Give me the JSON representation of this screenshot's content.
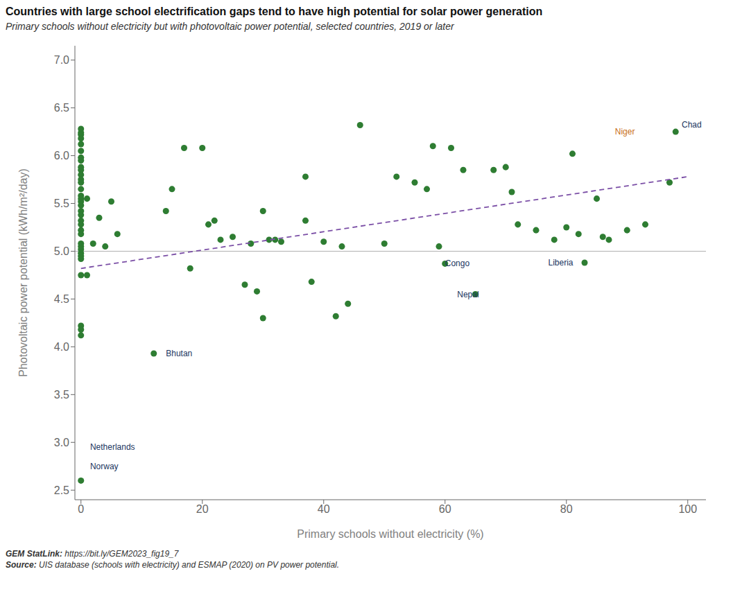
{
  "chart_data": {
    "type": "scatter",
    "title": "Countries with large school electrification gaps tend to have high potential for solar power generation",
    "subtitle": "Primary schools without electricity but with photovoltaic power potential, selected countries, 2019 or later",
    "x_label": "Primary schools without electricity (%)",
    "y_label": "Photovoltaic power potential (kWh/m²/day)",
    "xlim": [
      -1,
      103
    ],
    "ylim": [
      2.4,
      7.15
    ],
    "xticks": [
      0,
      20,
      40,
      60,
      80,
      100
    ],
    "yticks": [
      2.5,
      {
        "value": 3,
        "label": "3.0"
      },
      3.5,
      {
        "value": 4,
        "label": "4.0"
      },
      4.5,
      {
        "value": 5,
        "label": "5.0"
      },
      5.5,
      {
        "value": 6,
        "label": "6.0"
      },
      6.5,
      {
        "value": 7,
        "label": "7.0"
      }
    ],
    "grid": false,
    "color": "#2e7d32",
    "marker": "circle",
    "x": [
      0,
      0,
      0,
      0,
      0,
      0,
      0,
      0,
      0,
      0,
      0,
      0,
      0,
      0,
      0,
      0,
      0,
      0,
      0,
      0,
      0,
      0,
      0,
      0,
      0,
      0,
      0,
      0,
      0,
      0,
      0,
      0,
      0,
      0,
      0,
      1,
      1,
      2,
      3,
      4,
      5,
      6,
      12,
      14,
      15,
      17,
      18,
      20,
      21,
      22,
      23,
      25,
      27,
      28,
      29,
      30,
      30,
      31,
      32,
      33,
      37,
      37,
      38,
      40,
      42,
      43,
      44,
      46,
      50,
      52,
      55,
      57,
      58,
      59,
      60,
      61,
      63,
      65,
      68,
      70,
      71,
      72,
      75,
      78,
      80,
      81,
      82,
      83,
      85,
      86,
      87,
      90,
      93,
      97,
      98
    ],
    "values": [
      6.28,
      6.24,
      6.22,
      6.18,
      6.12,
      6.05,
      5.98,
      5.95,
      5.88,
      5.85,
      5.8,
      5.75,
      5.72,
      5.65,
      5.58,
      5.55,
      5.52,
      5.48,
      5.42,
      5.38,
      5.32,
      5.28,
      5.22,
      5.18,
      5.08,
      5.05,
      5.02,
      4.98,
      4.95,
      4.92,
      4.75,
      4.22,
      4.18,
      4.12,
      2.6,
      5.55,
      4.75,
      5.08,
      5.35,
      5.05,
      5.52,
      5.18,
      3.93,
      5.42,
      5.65,
      6.08,
      4.82,
      6.08,
      5.28,
      5.32,
      5.12,
      5.15,
      4.65,
      5.08,
      4.58,
      5.42,
      4.3,
      5.12,
      5.12,
      5.1,
      5.78,
      5.32,
      4.68,
      5.1,
      4.32,
      5.05,
      4.45,
      6.32,
      5.08,
      5.78,
      5.72,
      5.65,
      6.1,
      5.05,
      4.87,
      6.08,
      5.85,
      4.55,
      5.85,
      5.88,
      5.62,
      5.28,
      5.22,
      5.12,
      5.25,
      6.02,
      5.18,
      4.88,
      5.55,
      5.15,
      5.12,
      5.22,
      5.28,
      5.72,
      6.25
    ],
    "reference_lines": [
      {
        "y": 5.0,
        "color": "#b0b0b0"
      }
    ],
    "trend_line": {
      "x": [
        0,
        100
      ],
      "values": [
        4.82,
        5.78
      ],
      "color": "#7b4fa6",
      "line_style": "dashed"
    },
    "annotations": [
      {
        "text": "Netherlands",
        "x": 1.5,
        "y": 2.95,
        "color": "#1a3560"
      },
      {
        "text": "Norway",
        "x": 1.5,
        "y": 2.75,
        "color": "#1a3560"
      },
      {
        "text": "Bhutan",
        "x": 14,
        "y": 3.93,
        "color": "#1a3560"
      },
      {
        "text": "Congo",
        "x": 60,
        "y": 4.87,
        "color": "#1a3560"
      },
      {
        "text": "Nepal",
        "x": 62,
        "y": 4.55,
        "color": "#1a3560"
      },
      {
        "text": "Liberia",
        "x": 77,
        "y": 4.88,
        "color": "#1a3560"
      },
      {
        "text": "Niger",
        "x": 88,
        "y": 6.25,
        "color": "#c87020"
      },
      {
        "text": "Chad",
        "x": 99,
        "y": 6.32,
        "color": "#1a3560"
      }
    ],
    "footnotes": [
      {
        "bold": "GEM StatLink: ",
        "text": "https://bit.ly/GEM2023_fig19_7"
      },
      {
        "bold": "Source: ",
        "text": "UIS database (schools with electricity) and ESMAP (2020) on PV power potential."
      }
    ]
  }
}
